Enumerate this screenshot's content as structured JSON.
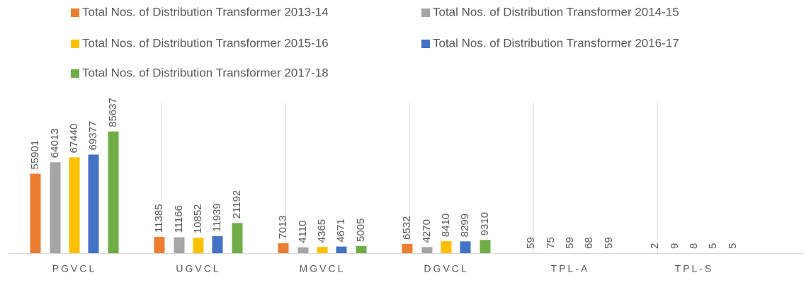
{
  "chart_data": {
    "type": "bar",
    "categories": [
      "PGVCL",
      "UGVCL",
      "MGVCL",
      "DGVCL",
      "TPL-A",
      "TPL-S"
    ],
    "series": [
      {
        "name": "Total Nos. of  Distribution Transformer 2013-14",
        "color": "#ed7d31",
        "values": [
          55901,
          11385,
          7013,
          6532,
          59,
          2
        ]
      },
      {
        "name": "Total Nos. of  Distribution Transformer 2014-15",
        "color": "#a5a5a5",
        "values": [
          64013,
          11166,
          4110,
          4270,
          75,
          9
        ]
      },
      {
        "name": "Total Nos. of  Distribution Transformer 2015-16",
        "color": "#ffc000",
        "values": [
          67440,
          10852,
          4365,
          8410,
          59,
          8
        ]
      },
      {
        "name": "Total Nos. of  Distribution Transformer 2016-17",
        "color": "#4472c4",
        "values": [
          69377,
          11939,
          4671,
          8299,
          68,
          5
        ]
      },
      {
        "name": "Total Nos. of  Distribution Transformer 2017-18",
        "color": "#70ad47",
        "values": [
          85637,
          21192,
          5005,
          9310,
          59,
          5
        ]
      }
    ],
    "ylim": [
      0,
      100000
    ],
    "legend": "top"
  }
}
